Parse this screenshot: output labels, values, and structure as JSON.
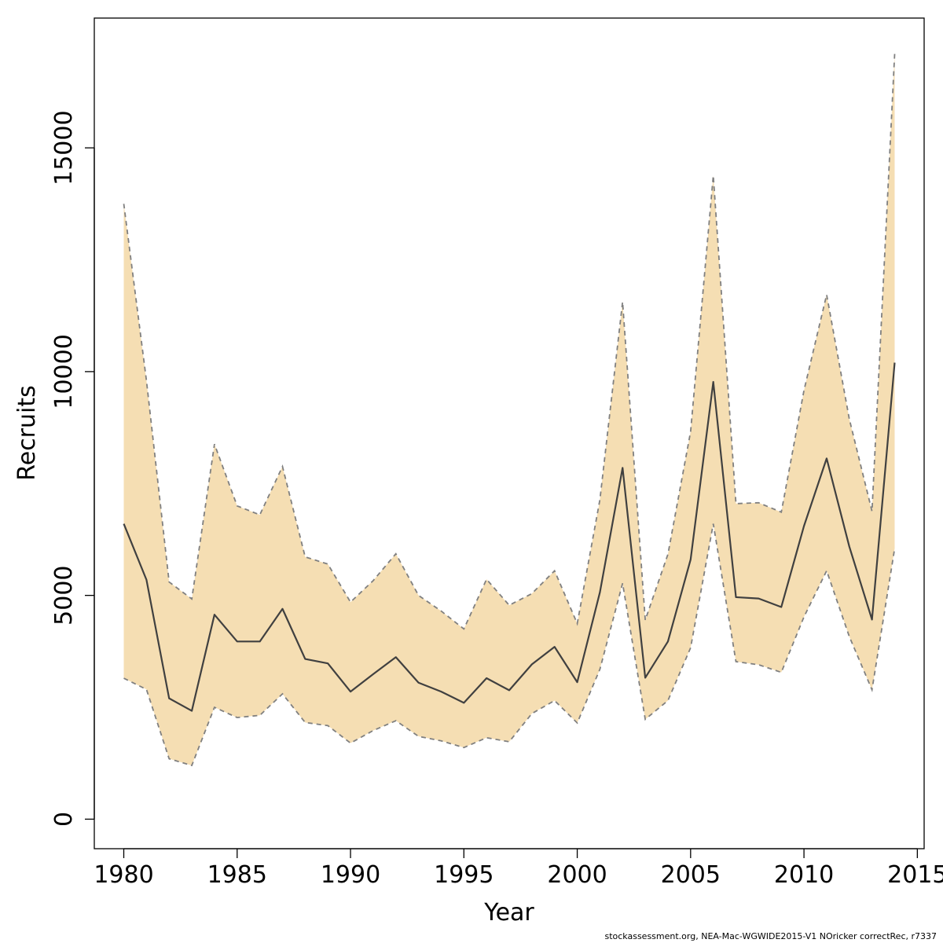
{
  "chart_data": {
    "type": "area",
    "xlabel": "Year",
    "ylabel": "Recruits",
    "xlim": [
      1978.7,
      2015.3
    ],
    "ylim": [
      -660,
      17900
    ],
    "x_ticks": [
      1980,
      1985,
      1990,
      1995,
      2000,
      2005,
      2010,
      2015
    ],
    "y_ticks": [
      0,
      5000,
      10000,
      15000
    ],
    "x": [
      1980,
      1981,
      1982,
      1983,
      1984,
      1985,
      1986,
      1987,
      1988,
      1989,
      1990,
      1991,
      1992,
      1993,
      1994,
      1995,
      1996,
      1997,
      1998,
      1999,
      2000,
      2001,
      2002,
      2003,
      2004,
      2005,
      2006,
      2007,
      2008,
      2009,
      2010,
      2011,
      2012,
      2013,
      2014
    ],
    "series": [
      {
        "role": "estimate",
        "values": [
          6600,
          5350,
          2700,
          2420,
          4570,
          3970,
          3970,
          4700,
          3580,
          3480,
          2850,
          3240,
          3620,
          3050,
          2850,
          2600,
          3150,
          2880,
          3460,
          3850,
          3060,
          5070,
          7850,
          3160,
          3970,
          5800,
          9770,
          4960,
          4930,
          4740,
          6550,
          8060,
          6090,
          4460,
          10200
        ]
      },
      {
        "role": "upper",
        "values": [
          13750,
          9800,
          5300,
          4920,
          8380,
          7000,
          6800,
          7880,
          5860,
          5700,
          4850,
          5330,
          5930,
          5000,
          4650,
          4250,
          5360,
          4780,
          5040,
          5550,
          4370,
          7140,
          11560,
          4450,
          5920,
          8660,
          14380,
          7050,
          7070,
          6860,
          9580,
          11720,
          8940,
          6880,
          17100
        ]
      },
      {
        "role": "lower",
        "values": [
          3150,
          2900,
          1350,
          1200,
          2500,
          2270,
          2320,
          2800,
          2160,
          2090,
          1700,
          1980,
          2200,
          1850,
          1750,
          1600,
          1820,
          1730,
          2360,
          2650,
          2150,
          3350,
          5270,
          2230,
          2650,
          3830,
          6600,
          3520,
          3450,
          3280,
          4520,
          5550,
          4080,
          2890,
          6050
        ]
      }
    ],
    "colors": {
      "band_fill": "#f5deb3",
      "band_edge": "#808080",
      "estimate_line": "#404040",
      "frame": "#000000"
    },
    "grid": false,
    "footer_text": "stockassessment.org, NEA-Mac-WGWIDE2015-V1  NOricker  correctRec, r7337"
  }
}
